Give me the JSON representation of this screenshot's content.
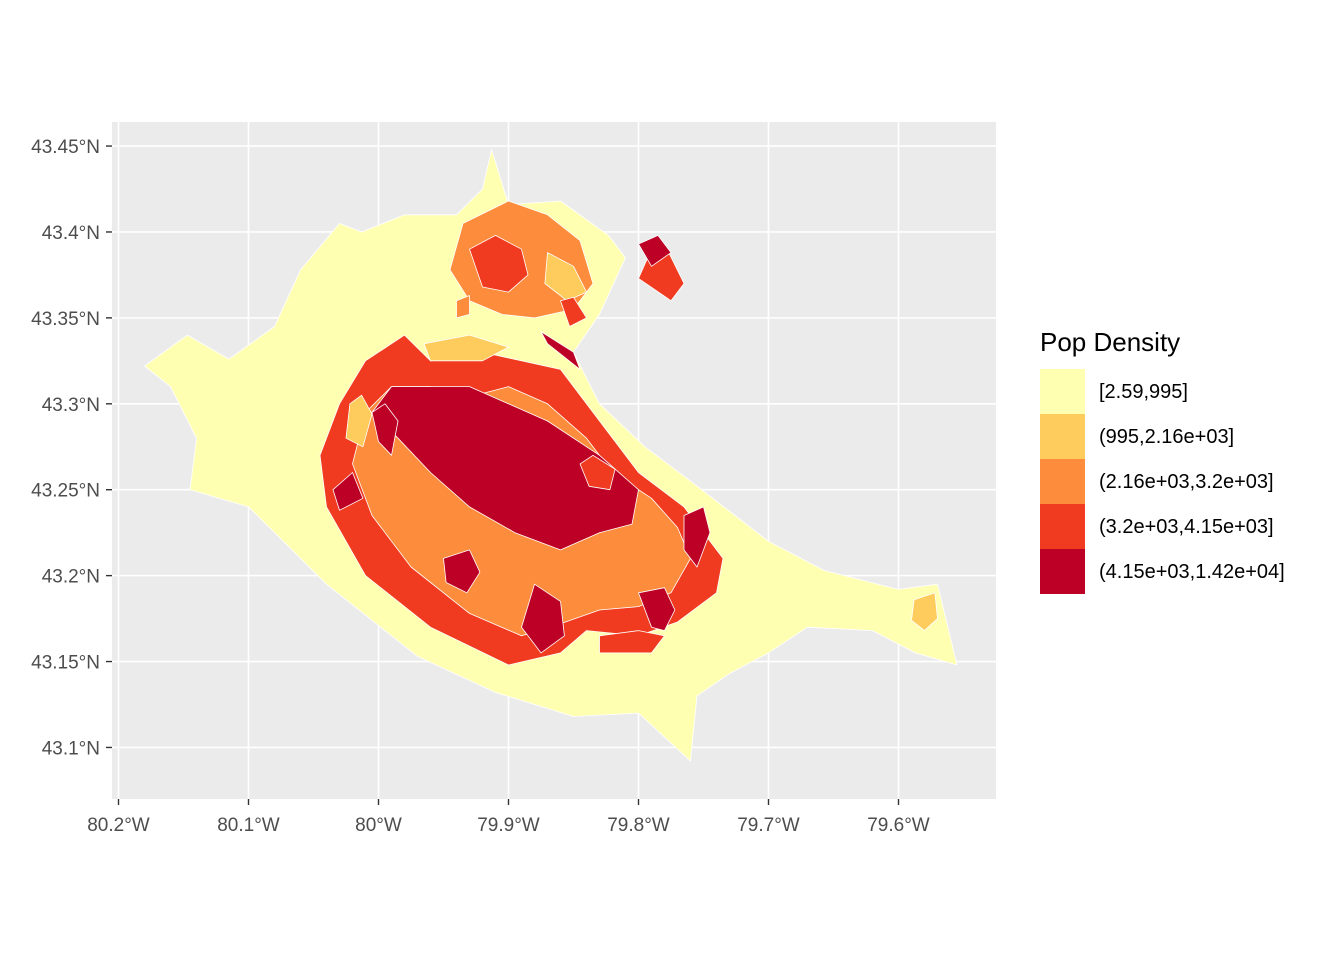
{
  "chart_data": {
    "type": "choropleth",
    "title": "",
    "xlabel": "",
    "ylabel": "",
    "x_ticks": [
      {
        "value": -80.2,
        "label": "80.2°W"
      },
      {
        "value": -80.1,
        "label": "80.1°W"
      },
      {
        "value": -80.0,
        "label": "80°W"
      },
      {
        "value": -79.9,
        "label": "79.9°W"
      },
      {
        "value": -79.8,
        "label": "79.8°W"
      },
      {
        "value": -79.7,
        "label": "79.7°W"
      },
      {
        "value": -79.6,
        "label": "79.6°W"
      }
    ],
    "y_ticks": [
      {
        "value": 43.45,
        "label": "43.45°N"
      },
      {
        "value": 43.4,
        "label": "43.4°N"
      },
      {
        "value": 43.35,
        "label": "43.35°N"
      },
      {
        "value": 43.3,
        "label": "43.3°N"
      },
      {
        "value": 43.25,
        "label": "43.25°N"
      },
      {
        "value": 43.2,
        "label": "43.2°N"
      },
      {
        "value": 43.15,
        "label": "43.15°N"
      },
      {
        "value": 43.1,
        "label": "43.1°N"
      }
    ],
    "xlim": [
      -80.205,
      -79.525
    ],
    "ylim": [
      43.07,
      43.464
    ],
    "grid": true,
    "legend": {
      "title": "Pop Density",
      "placement": "right",
      "items": [
        {
          "label": "[2.59,995]",
          "color": "#ffffb2"
        },
        {
          "label": "(995,2.16e+03]",
          "color": "#fecc5c"
        },
        {
          "label": "(2.16e+03,3.2e+03]",
          "color": "#fd8d3c"
        },
        {
          "label": "(3.2e+03,4.15e+03]",
          "color": "#f03b20"
        },
        {
          "label": "(4.15e+03,1.42e+04]",
          "color": "#bd0026"
        }
      ]
    },
    "regions": [
      {
        "class": 0,
        "points": [
          [
            -80.18,
            43.322
          ],
          [
            -80.147,
            43.34
          ],
          [
            -80.115,
            43.326
          ],
          [
            -80.08,
            43.345
          ],
          [
            -80.06,
            43.378
          ],
          [
            -80.03,
            43.405
          ],
          [
            -80.013,
            43.4
          ],
          [
            -79.98,
            43.41
          ],
          [
            -79.94,
            43.41
          ],
          [
            -79.92,
            43.425
          ],
          [
            -79.913,
            43.448
          ],
          [
            -79.9,
            43.416
          ],
          [
            -79.86,
            43.418
          ],
          [
            -79.823,
            43.398
          ],
          [
            -79.81,
            43.385
          ],
          [
            -79.83,
            43.352
          ],
          [
            -79.85,
            43.33
          ],
          [
            -79.83,
            43.3
          ],
          [
            -79.795,
            43.275
          ],
          [
            -79.76,
            43.255
          ],
          [
            -79.7,
            43.22
          ],
          [
            -79.657,
            43.203
          ],
          [
            -79.6,
            43.192
          ],
          [
            -79.57,
            43.195
          ],
          [
            -79.555,
            43.148
          ],
          [
            -79.587,
            43.155
          ],
          [
            -79.62,
            43.168
          ],
          [
            -79.67,
            43.17
          ],
          [
            -79.7,
            43.155
          ],
          [
            -79.73,
            43.143
          ],
          [
            -79.755,
            43.13
          ],
          [
            -79.76,
            43.092
          ],
          [
            -79.8,
            43.12
          ],
          [
            -79.85,
            43.118
          ],
          [
            -79.91,
            43.132
          ],
          [
            -79.97,
            43.153
          ],
          [
            -80.04,
            43.195
          ],
          [
            -80.1,
            43.24
          ],
          [
            -80.145,
            43.25
          ],
          [
            -80.14,
            43.28
          ],
          [
            -80.16,
            43.31
          ]
        ]
      },
      {
        "class": 1,
        "points": [
          [
            -79.59,
            43.174
          ],
          [
            -79.58,
            43.168
          ],
          [
            -79.57,
            43.175
          ],
          [
            -79.572,
            43.19
          ],
          [
            -79.588,
            43.186
          ]
        ]
      },
      {
        "class": 3,
        "points": [
          [
            -79.98,
            43.34
          ],
          [
            -79.96,
            43.325
          ],
          [
            -79.92,
            43.33
          ],
          [
            -79.86,
            43.32
          ],
          [
            -79.83,
            43.29
          ],
          [
            -79.8,
            43.26
          ],
          [
            -79.765,
            43.24
          ],
          [
            -79.735,
            43.21
          ],
          [
            -79.74,
            43.19
          ],
          [
            -79.77,
            43.173
          ],
          [
            -79.8,
            43.165
          ],
          [
            -79.84,
            43.168
          ],
          [
            -79.86,
            43.155
          ],
          [
            -79.9,
            43.148
          ],
          [
            -79.96,
            43.17
          ],
          [
            -80.01,
            43.2
          ],
          [
            -80.04,
            43.24
          ],
          [
            -80.045,
            43.27
          ],
          [
            -80.03,
            43.3
          ],
          [
            -80.01,
            43.325
          ]
        ]
      },
      {
        "class": 2,
        "points": [
          [
            -79.96,
            43.31
          ],
          [
            -79.95,
            43.3
          ],
          [
            -79.9,
            43.31
          ],
          [
            -79.87,
            43.3
          ],
          [
            -79.84,
            43.28
          ],
          [
            -79.82,
            43.26
          ],
          [
            -79.79,
            43.245
          ],
          [
            -79.77,
            43.228
          ],
          [
            -79.76,
            43.21
          ],
          [
            -79.775,
            43.19
          ],
          [
            -79.8,
            43.182
          ],
          [
            -79.83,
            43.18
          ],
          [
            -79.86,
            43.172
          ],
          [
            -79.89,
            43.165
          ],
          [
            -79.93,
            43.178
          ],
          [
            -79.975,
            43.205
          ],
          [
            -80.005,
            43.235
          ],
          [
            -80.02,
            43.265
          ],
          [
            -80.01,
            43.295
          ],
          [
            -79.99,
            43.31
          ]
        ]
      },
      {
        "class": 4,
        "points": [
          [
            -79.99,
            43.31
          ],
          [
            -79.93,
            43.31
          ],
          [
            -79.87,
            43.29
          ],
          [
            -79.83,
            43.27
          ],
          [
            -79.8,
            43.25
          ],
          [
            -79.805,
            43.23
          ],
          [
            -79.83,
            43.225
          ],
          [
            -79.86,
            43.215
          ],
          [
            -79.895,
            43.225
          ],
          [
            -79.93,
            43.24
          ],
          [
            -79.96,
            43.26
          ],
          [
            -79.985,
            43.28
          ],
          [
            -80.005,
            43.295
          ]
        ]
      },
      {
        "class": 3,
        "points": [
          [
            -79.845,
            43.265
          ],
          [
            -79.835,
            43.27
          ],
          [
            -79.818,
            43.262
          ],
          [
            -79.822,
            43.25
          ],
          [
            -79.838,
            43.252
          ]
        ]
      },
      {
        "class": 4,
        "points": [
          [
            -79.88,
            43.195
          ],
          [
            -79.89,
            43.17
          ],
          [
            -79.875,
            43.155
          ],
          [
            -79.857,
            43.165
          ],
          [
            -79.86,
            43.185
          ]
        ]
      },
      {
        "class": 4,
        "points": [
          [
            -79.95,
            43.21
          ],
          [
            -79.948,
            43.196
          ],
          [
            -79.932,
            43.19
          ],
          [
            -79.922,
            43.202
          ],
          [
            -79.93,
            43.215
          ]
        ]
      },
      {
        "class": 4,
        "points": [
          [
            -79.765,
            43.235
          ],
          [
            -79.75,
            43.24
          ],
          [
            -79.745,
            43.225
          ],
          [
            -79.755,
            43.205
          ],
          [
            -79.765,
            43.215
          ]
        ]
      },
      {
        "class": 4,
        "points": [
          [
            -79.8,
            43.19
          ],
          [
            -79.79,
            43.17
          ],
          [
            -79.78,
            43.168
          ],
          [
            -79.772,
            43.18
          ],
          [
            -79.78,
            43.193
          ]
        ]
      },
      {
        "class": 4,
        "points": [
          [
            -80.005,
            43.295
          ],
          [
            -79.995,
            43.3
          ],
          [
            -79.985,
            43.29
          ],
          [
            -79.99,
            43.27
          ],
          [
            -80.0,
            43.278
          ]
        ]
      },
      {
        "class": 1,
        "points": [
          [
            -80.022,
            43.3
          ],
          [
            -80.013,
            43.305
          ],
          [
            -80.005,
            43.294
          ],
          [
            -80.012,
            43.275
          ],
          [
            -80.025,
            43.28
          ]
        ]
      },
      {
        "class": 1,
        "points": [
          [
            -79.965,
            43.335
          ],
          [
            -79.93,
            43.34
          ],
          [
            -79.9,
            43.333
          ],
          [
            -79.92,
            43.325
          ],
          [
            -79.96,
            43.325
          ]
        ]
      },
      {
        "class": 3,
        "points": [
          [
            -79.83,
            43.165
          ],
          [
            -79.8,
            43.168
          ],
          [
            -79.78,
            43.165
          ],
          [
            -79.79,
            43.155
          ],
          [
            -79.83,
            43.155
          ]
        ]
      },
      {
        "class": 4,
        "points": [
          [
            -80.02,
            43.26
          ],
          [
            -80.012,
            43.245
          ],
          [
            -80.03,
            43.238
          ],
          [
            -80.035,
            43.25
          ]
        ]
      },
      {
        "class": 2,
        "points": [
          [
            -79.935,
            43.405
          ],
          [
            -79.9,
            43.418
          ],
          [
            -79.87,
            43.41
          ],
          [
            -79.845,
            43.395
          ],
          [
            -79.835,
            43.37
          ],
          [
            -79.85,
            43.355
          ],
          [
            -79.88,
            43.35
          ],
          [
            -79.905,
            43.352
          ],
          [
            -79.93,
            43.36
          ],
          [
            -79.945,
            43.378
          ]
        ]
      },
      {
        "class": 3,
        "points": [
          [
            -79.93,
            43.39
          ],
          [
            -79.91,
            43.398
          ],
          [
            -79.89,
            43.39
          ],
          [
            -79.885,
            43.375
          ],
          [
            -79.9,
            43.365
          ],
          [
            -79.92,
            43.368
          ]
        ]
      },
      {
        "class": 1,
        "points": [
          [
            -79.87,
            43.388
          ],
          [
            -79.85,
            43.38
          ],
          [
            -79.84,
            43.365
          ],
          [
            -79.855,
            43.36
          ],
          [
            -79.872,
            43.37
          ]
        ]
      },
      {
        "class": 3,
        "points": [
          [
            -79.79,
            43.39
          ],
          [
            -79.778,
            43.39
          ],
          [
            -79.765,
            43.37
          ],
          [
            -79.775,
            43.36
          ],
          [
            -79.8,
            43.373
          ]
        ]
      },
      {
        "class": 4,
        "points": [
          [
            -79.8,
            43.393
          ],
          [
            -79.785,
            43.398
          ],
          [
            -79.775,
            43.388
          ],
          [
            -79.79,
            43.38
          ]
        ]
      },
      {
        "class": 2,
        "points": [
          [
            -79.94,
            43.36
          ],
          [
            -79.93,
            43.363
          ],
          [
            -79.93,
            43.352
          ],
          [
            -79.94,
            43.35
          ]
        ]
      },
      {
        "class": 4,
        "points": [
          [
            -79.875,
            43.342
          ],
          [
            -79.85,
            43.33
          ],
          [
            -79.845,
            43.32
          ],
          [
            -79.87,
            43.335
          ]
        ]
      },
      {
        "class": 3,
        "points": [
          [
            -79.86,
            43.36
          ],
          [
            -79.85,
            43.362
          ],
          [
            -79.84,
            43.35
          ],
          [
            -79.853,
            43.345
          ]
        ]
      }
    ]
  }
}
